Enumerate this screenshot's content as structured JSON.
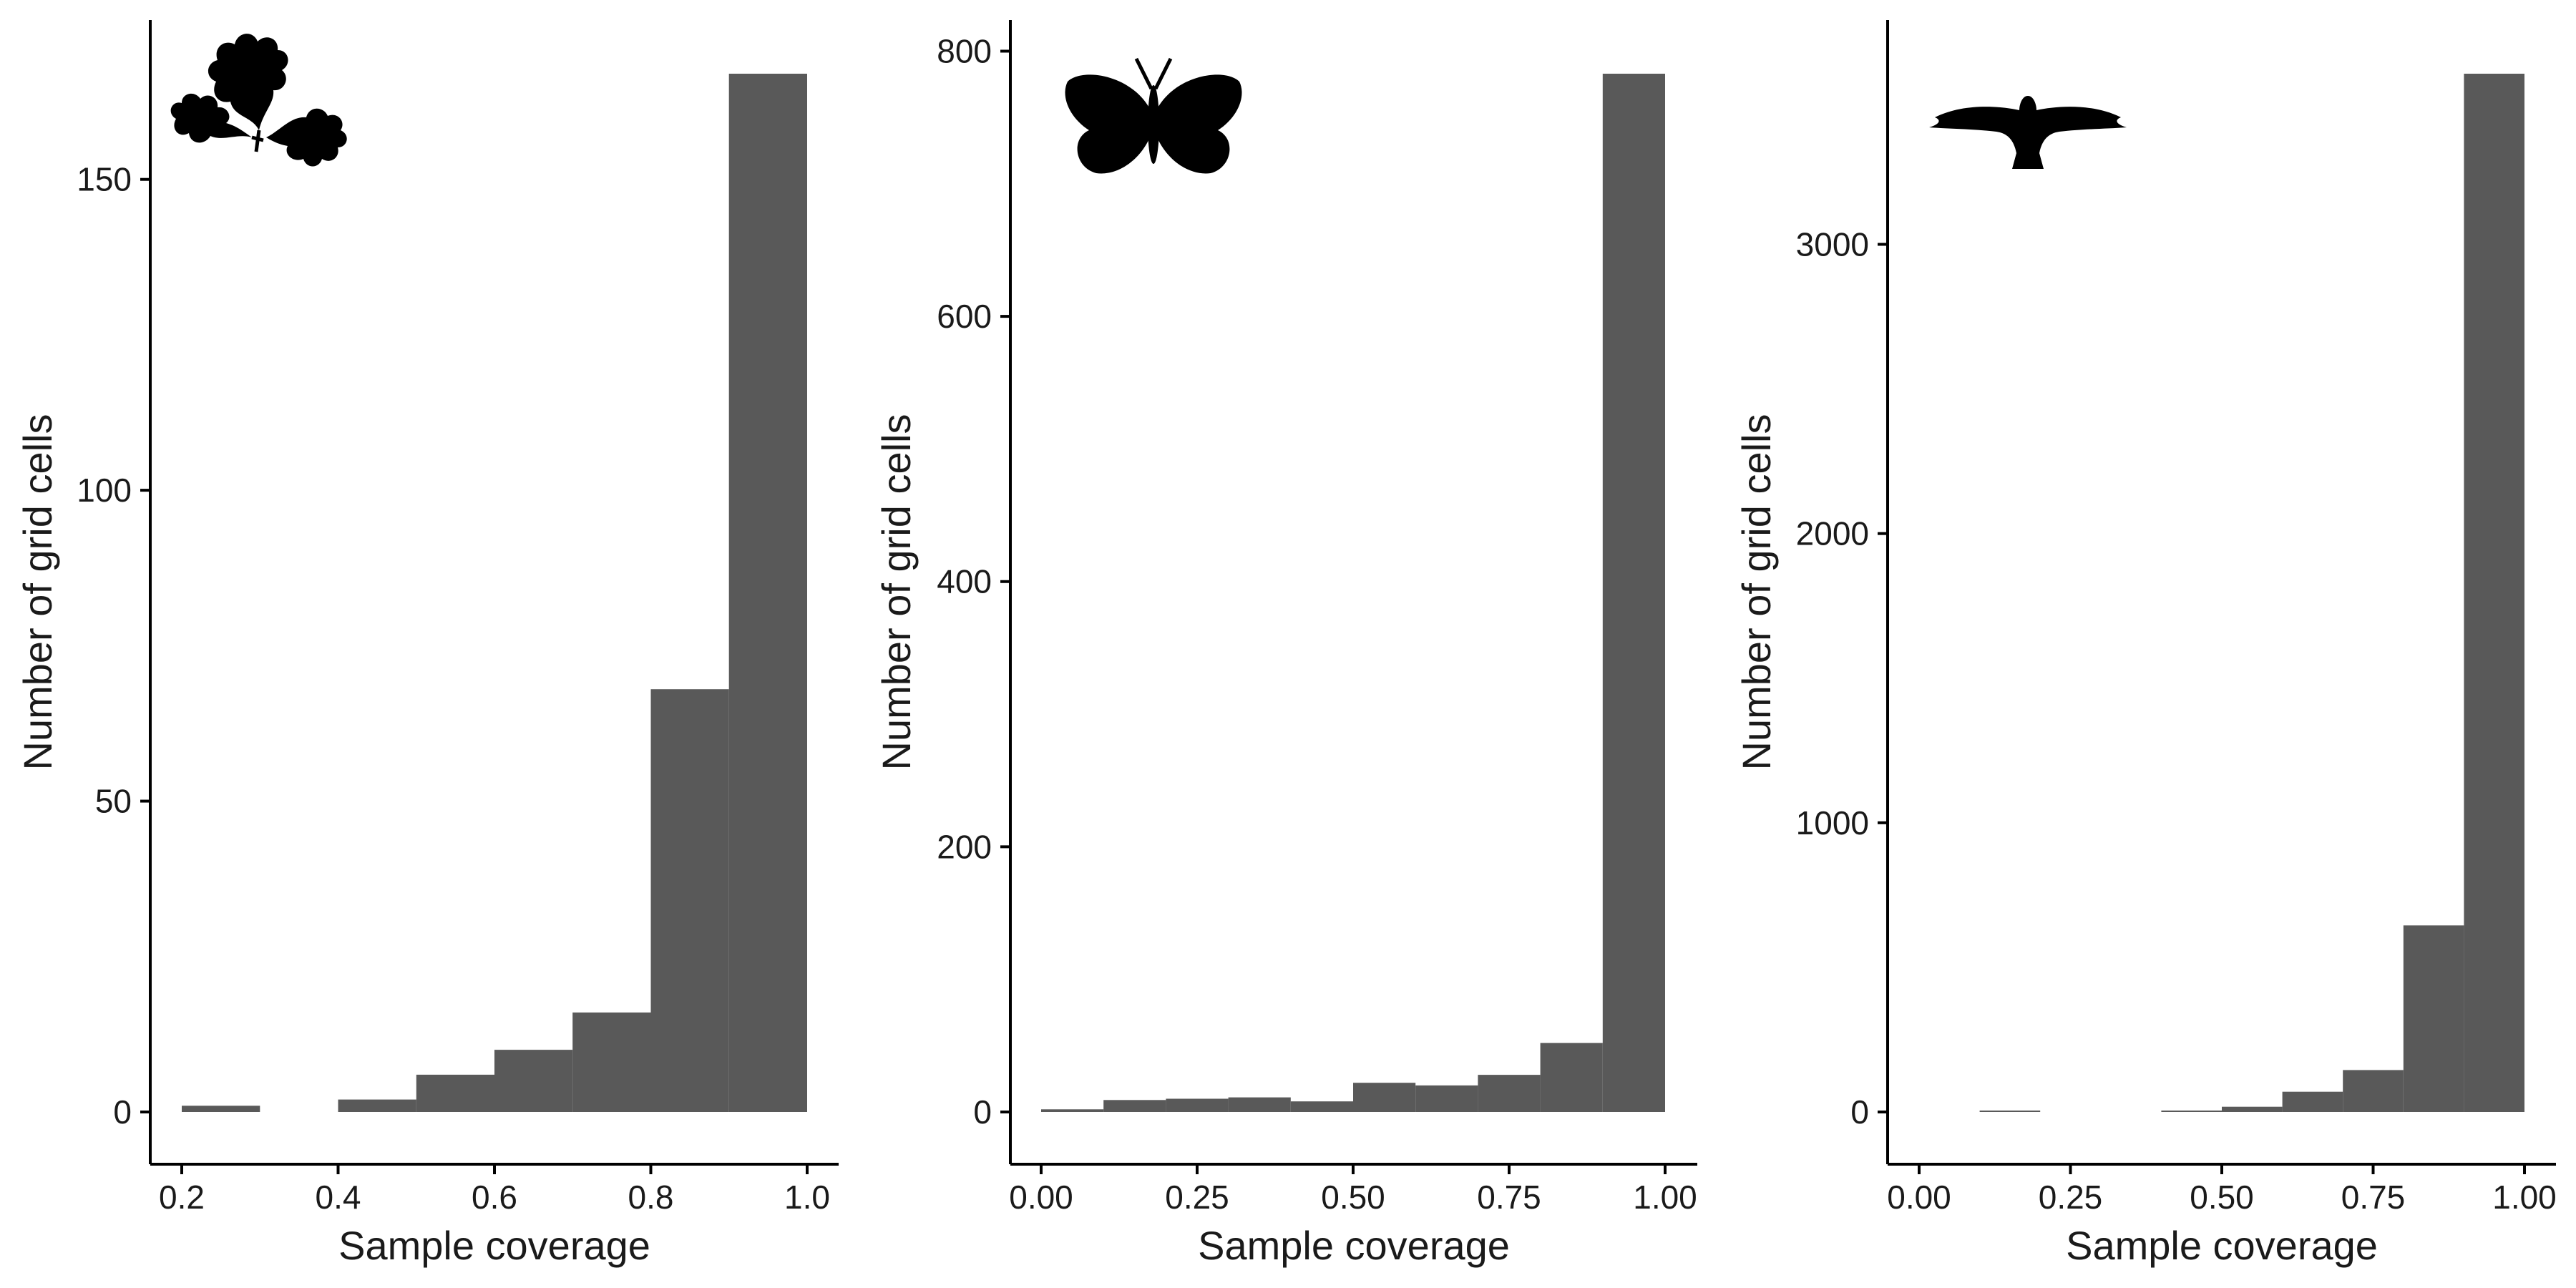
{
  "chart_data": [
    {
      "type": "bar",
      "icon": "oak-leaf-icon",
      "xlabel": "Sample coverage",
      "ylabel": "Number of grid cells",
      "xlim": [
        0.2,
        1.0
      ],
      "ylim": [
        0,
        167
      ],
      "xticks": [
        0.2,
        0.4,
        0.6,
        0.8,
        1.0
      ],
      "xtick_labels": [
        "0.2",
        "0.4",
        "0.6",
        "0.8",
        "1.0"
      ],
      "yticks": [
        0,
        50,
        100,
        150
      ],
      "ytick_labels": [
        "0",
        "50",
        "100",
        "150"
      ],
      "bins": [
        {
          "x0": 0.2,
          "x1": 0.3,
          "count": 1
        },
        {
          "x0": 0.4,
          "x1": 0.5,
          "count": 2
        },
        {
          "x0": 0.5,
          "x1": 0.6,
          "count": 6
        },
        {
          "x0": 0.6,
          "x1": 0.7,
          "count": 10
        },
        {
          "x0": 0.7,
          "x1": 0.8,
          "count": 16
        },
        {
          "x0": 0.8,
          "x1": 0.9,
          "count": 68
        },
        {
          "x0": 0.9,
          "x1": 1.0,
          "count": 167
        }
      ]
    },
    {
      "type": "bar",
      "icon": "butterfly-icon",
      "xlabel": "Sample coverage",
      "ylabel": "Number of grid cells",
      "xlim": [
        0.0,
        1.0
      ],
      "ylim": [
        0,
        783
      ],
      "xticks": [
        0.0,
        0.25,
        0.5,
        0.75,
        1.0
      ],
      "xtick_labels": [
        "0.00",
        "0.25",
        "0.50",
        "0.75",
        "1.00"
      ],
      "yticks": [
        0,
        200,
        400,
        600,
        800
      ],
      "ytick_labels": [
        "0",
        "200",
        "400",
        "600",
        "800"
      ],
      "bins": [
        {
          "x0": 0.0,
          "x1": 0.1,
          "count": 2
        },
        {
          "x0": 0.1,
          "x1": 0.2,
          "count": 9
        },
        {
          "x0": 0.2,
          "x1": 0.3,
          "count": 10
        },
        {
          "x0": 0.3,
          "x1": 0.4,
          "count": 11
        },
        {
          "x0": 0.4,
          "x1": 0.5,
          "count": 8
        },
        {
          "x0": 0.5,
          "x1": 0.6,
          "count": 22
        },
        {
          "x0": 0.6,
          "x1": 0.7,
          "count": 20
        },
        {
          "x0": 0.7,
          "x1": 0.8,
          "count": 28
        },
        {
          "x0": 0.8,
          "x1": 0.9,
          "count": 52
        },
        {
          "x0": 0.9,
          "x1": 1.0,
          "count": 783
        }
      ]
    },
    {
      "type": "bar",
      "icon": "bird-of-prey-icon",
      "xlabel": "Sample coverage",
      "ylabel": "Number of grid cells",
      "xlim": [
        0.0,
        1.0
      ],
      "ylim": [
        0,
        3590
      ],
      "xticks": [
        0.0,
        0.25,
        0.5,
        0.75,
        1.0
      ],
      "xtick_labels": [
        "0.00",
        "0.25",
        "0.50",
        "0.75",
        "1.00"
      ],
      "yticks": [
        0,
        1000,
        2000,
        3000
      ],
      "ytick_labels": [
        "0",
        "1000",
        "2000",
        "3000"
      ],
      "bins": [
        {
          "x0": 0.1,
          "x1": 0.2,
          "count": 1
        },
        {
          "x0": 0.4,
          "x1": 0.5,
          "count": 5
        },
        {
          "x0": 0.5,
          "x1": 0.6,
          "count": 18
        },
        {
          "x0": 0.6,
          "x1": 0.7,
          "count": 70
        },
        {
          "x0": 0.7,
          "x1": 0.8,
          "count": 145
        },
        {
          "x0": 0.8,
          "x1": 0.9,
          "count": 645
        },
        {
          "x0": 0.9,
          "x1": 1.0,
          "count": 3590
        }
      ]
    }
  ],
  "style": {
    "bar_color": "#595959",
    "axis_color": "#000000",
    "text_color": "#1a1a1a",
    "background": "#ffffff",
    "grid": false,
    "legend": "none"
  }
}
